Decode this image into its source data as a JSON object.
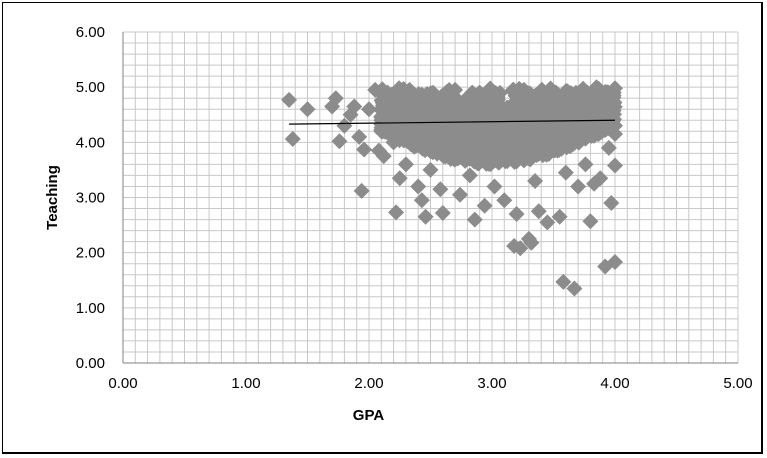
{
  "chart_data": {
    "type": "scatter",
    "title": "",
    "xlabel": "GPA",
    "ylabel": "Teaching",
    "xlim": [
      0,
      5
    ],
    "ylim": [
      0,
      6
    ],
    "xticks": [
      "0.00",
      "1.00",
      "2.00",
      "3.00",
      "4.00",
      "5.00"
    ],
    "yticks": [
      "0.00",
      "1.00",
      "2.00",
      "3.00",
      "4.00",
      "5.00",
      "6.00"
    ],
    "grid": true,
    "legend": "none",
    "marker": "diamond",
    "marker_color": "#8c8c8c",
    "points": [
      [
        1.35,
        4.77
      ],
      [
        1.38,
        4.06
      ],
      [
        1.5,
        4.6
      ],
      [
        1.7,
        4.65
      ],
      [
        1.73,
        4.8
      ],
      [
        1.76,
        4.02
      ],
      [
        1.8,
        4.3
      ],
      [
        1.85,
        4.5
      ],
      [
        1.88,
        4.65
      ],
      [
        1.92,
        4.1
      ],
      [
        1.94,
        3.12
      ],
      [
        1.96,
        3.87
      ],
      [
        2.0,
        4.6
      ],
      [
        2.05,
        4.95
      ],
      [
        2.08,
        3.85
      ],
      [
        2.1,
        4.2
      ],
      [
        2.12,
        3.75
      ],
      [
        2.15,
        4.9
      ],
      [
        2.18,
        4.45
      ],
      [
        2.2,
        4.0
      ],
      [
        2.22,
        2.73
      ],
      [
        2.25,
        3.35
      ],
      [
        2.28,
        4.7
      ],
      [
        2.3,
        3.6
      ],
      [
        2.33,
        4.95
      ],
      [
        2.36,
        4.1
      ],
      [
        2.4,
        3.2
      ],
      [
        2.43,
        2.95
      ],
      [
        2.46,
        2.65
      ],
      [
        2.5,
        3.5
      ],
      [
        2.55,
        4.8
      ],
      [
        2.58,
        3.15
      ],
      [
        2.6,
        2.72
      ],
      [
        2.63,
        4.25
      ],
      [
        2.66,
        3.8
      ],
      [
        2.7,
        4.95
      ],
      [
        2.74,
        3.05
      ],
      [
        2.78,
        4.55
      ],
      [
        2.82,
        3.4
      ],
      [
        2.86,
        2.6
      ],
      [
        2.9,
        4.9
      ],
      [
        2.94,
        2.85
      ],
      [
        2.98,
        4.15
      ],
      [
        3.02,
        3.2
      ],
      [
        3.05,
        4.7
      ],
      [
        3.1,
        2.95
      ],
      [
        3.14,
        3.75
      ],
      [
        3.18,
        2.12
      ],
      [
        3.2,
        2.7
      ],
      [
        3.23,
        2.08
      ],
      [
        3.26,
        4.95
      ],
      [
        3.3,
        2.25
      ],
      [
        3.32,
        2.18
      ],
      [
        3.35,
        3.3
      ],
      [
        3.38,
        2.75
      ],
      [
        3.42,
        4.4
      ],
      [
        3.45,
        2.55
      ],
      [
        3.48,
        3.95
      ],
      [
        3.52,
        4.9
      ],
      [
        3.55,
        2.65
      ],
      [
        3.58,
        1.47
      ],
      [
        3.6,
        3.45
      ],
      [
        3.63,
        4.6
      ],
      [
        3.67,
        1.35
      ],
      [
        3.7,
        3.2
      ],
      [
        3.73,
        4.85
      ],
      [
        3.76,
        3.6
      ],
      [
        3.8,
        2.57
      ],
      [
        3.83,
        3.25
      ],
      [
        3.86,
        4.95
      ],
      [
        3.88,
        3.35
      ],
      [
        3.9,
        4.3
      ],
      [
        3.92,
        1.75
      ],
      [
        3.95,
        3.9
      ],
      [
        3.97,
        2.9
      ],
      [
        3.98,
        4.7
      ],
      [
        4.0,
        1.83
      ],
      [
        4.0,
        3.58
      ],
      [
        4.0,
        4.15
      ],
      [
        4.0,
        4.98
      ]
    ],
    "dense_region": {
      "x": [
        2.1,
        4.0
      ],
      "y": [
        3.6,
        5.0
      ]
    },
    "trendline": {
      "x": [
        1.35,
        4.0
      ],
      "y": [
        4.33,
        4.4
      ],
      "color": "#000000"
    }
  }
}
